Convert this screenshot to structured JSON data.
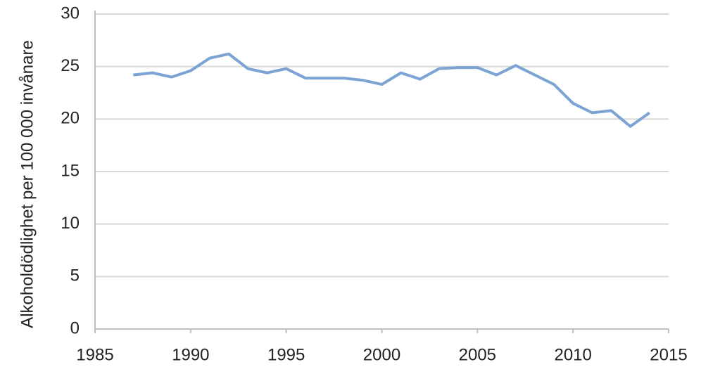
{
  "chart_data": {
    "type": "line",
    "ylabel": "Alkoholdödlighet per 100 000 invånare",
    "x": [
      1987,
      1988,
      1989,
      1990,
      1991,
      1992,
      1993,
      1994,
      1995,
      1996,
      1997,
      1998,
      1999,
      2000,
      2001,
      2002,
      2003,
      2004,
      2005,
      2006,
      2007,
      2008,
      2009,
      2010,
      2011,
      2012,
      2013,
      2014
    ],
    "series": [
      {
        "name": null,
        "color": "#7ba3d4",
        "values": [
          24.2,
          24.4,
          24.0,
          24.6,
          25.8,
          26.2,
          24.8,
          24.4,
          24.8,
          23.9,
          23.9,
          23.9,
          23.7,
          23.3,
          24.4,
          23.8,
          24.8,
          24.9,
          24.9,
          24.2,
          25.1,
          24.2,
          23.3,
          21.5,
          20.6,
          20.8,
          19.3,
          20.6
        ]
      }
    ],
    "xlim": [
      1985,
      2015
    ],
    "xticks": [
      1985,
      1990,
      1995,
      2000,
      2005,
      2010,
      2015
    ],
    "ylim": [
      0,
      30
    ],
    "yticks": [
      0,
      5,
      10,
      15,
      20,
      25,
      30
    ],
    "grid": true
  }
}
